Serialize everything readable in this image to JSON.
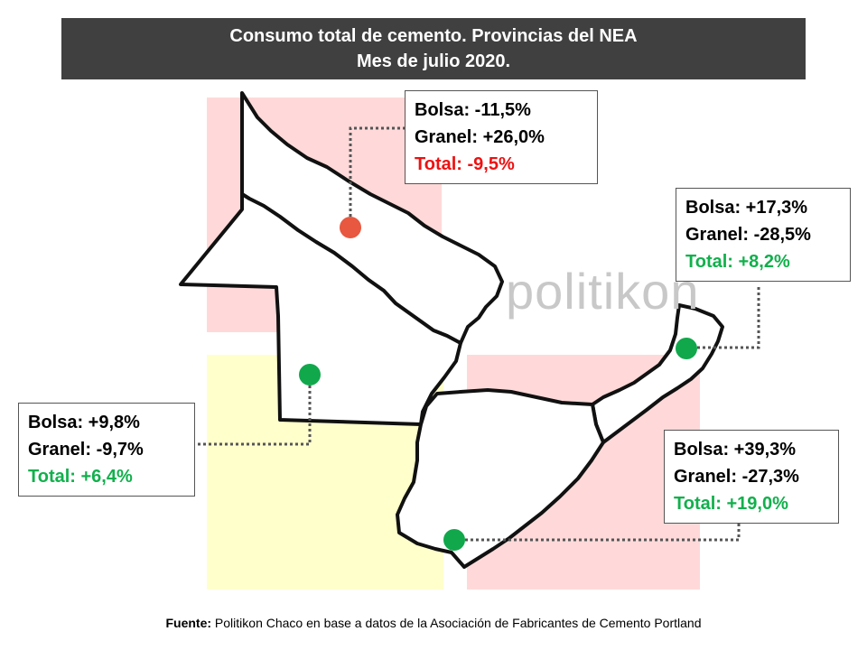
{
  "title": {
    "line1": "Consumo total de cemento. Provincias del NEA",
    "line2": "Mes de julio 2020."
  },
  "watermark": "politikon",
  "colors": {
    "region_top": "#ffd9d9",
    "region_left": "#ffffcc",
    "region_right": "#ffd9d9",
    "negative": "#ee1111",
    "positive": "#11b04c",
    "marker_negative": "#e8573f",
    "marker_positive": "#11a84c"
  },
  "provinces": [
    {
      "marker": "red",
      "bolsa": "Bolsa: -11,5%",
      "granel": "Granel: +26,0%",
      "total": "Total: -9,5%",
      "status": "negative"
    },
    {
      "marker": "green",
      "bolsa": "Bolsa: +17,3%",
      "granel": "Granel: -28,5%",
      "total": "Total: +8,2%",
      "status": "positive"
    },
    {
      "marker": "green",
      "bolsa": "Bolsa: +9,8%",
      "granel": "Granel: -9,7%",
      "total": "Total: +6,4%",
      "status": "positive"
    },
    {
      "marker": "green",
      "bolsa": "Bolsa: +39,3%",
      "granel": "Granel: -27,3%",
      "total": "Total: +19,0%",
      "status": "positive"
    }
  ],
  "source": {
    "label": "Fuente:",
    "text": " Politikon Chaco en base a datos de la Asociación de Fabricantes de Cemento Portland"
  }
}
